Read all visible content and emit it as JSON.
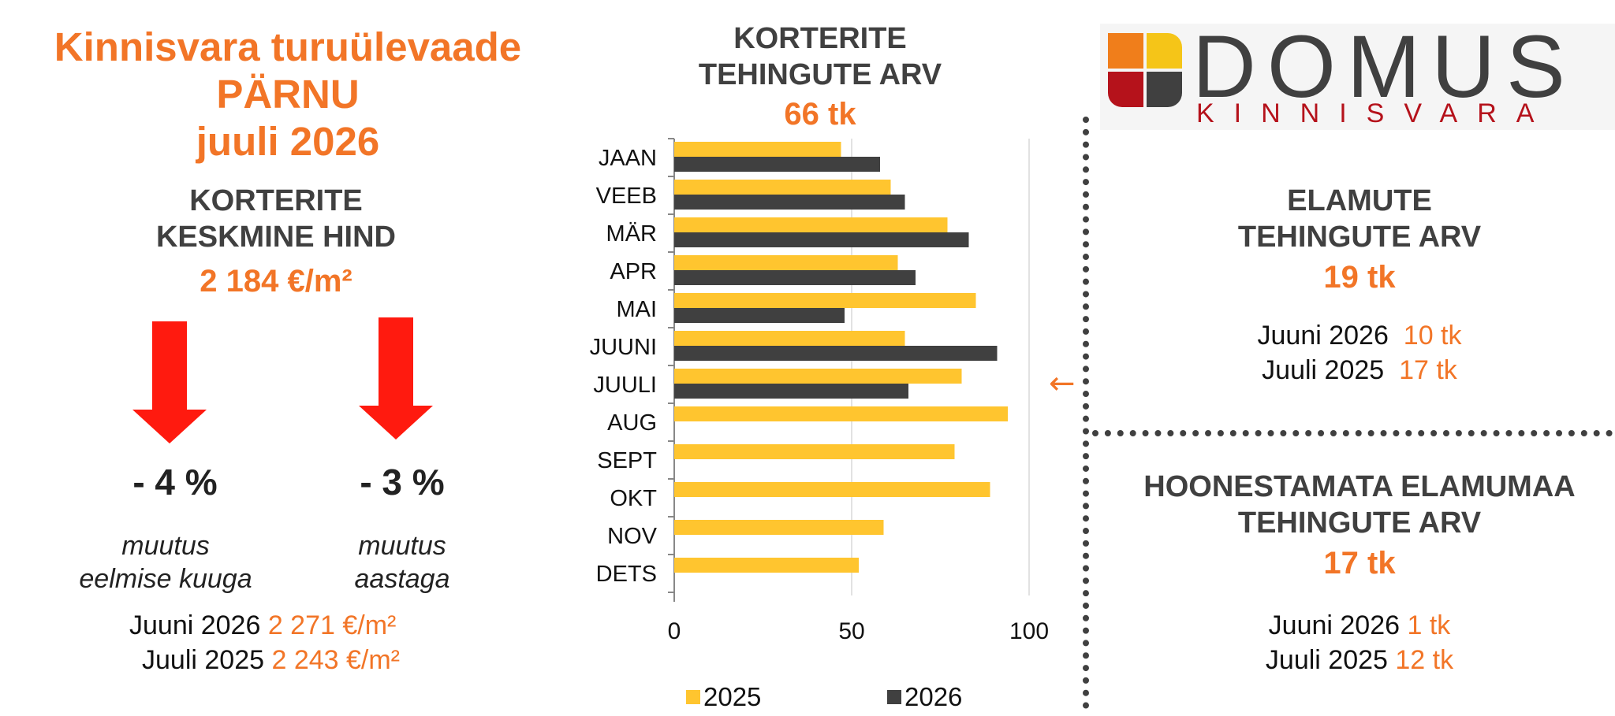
{
  "left": {
    "title_line1": "Kinnisvara turuülevaade",
    "title_line2": "PÄRNU",
    "title_line3": "juuli 2026",
    "price_heading_line1": "KORTERITE",
    "price_heading_line2": "KESKMINE HIND",
    "price_value": "2 184 €/m²",
    "monthly_change": "- 4 %",
    "monthly_label_line1": "muutus",
    "monthly_label_line2": "eelmise kuuga",
    "yearly_change": "- 3 %",
    "yearly_label_line1": "muutus",
    "yearly_label_line2": "aastaga",
    "compare1_label": "Juuni 2026",
    "compare1_value": "2 271 €/m²",
    "compare2_label": "Juuli 2025",
    "compare2_value": "2 243 €/m²"
  },
  "chart_header": {
    "title_line1": "KORTERITE",
    "title_line2": "TEHINGUTE ARV",
    "total": "66 tk"
  },
  "chart_data": {
    "type": "bar",
    "orientation": "horizontal",
    "categories": [
      "JAAN",
      "VEEB",
      "MÄR",
      "APR",
      "MAI",
      "JUUNI",
      "JUULI",
      "AUG",
      "SEPT",
      "OKT",
      "NOV",
      "DETS"
    ],
    "series": [
      {
        "name": "2025",
        "color": "#ffc52f",
        "values": [
          47,
          61,
          77,
          63,
          85,
          65,
          81,
          94,
          79,
          89,
          59,
          52
        ]
      },
      {
        "name": "2026",
        "color": "#404040",
        "values": [
          58,
          65,
          83,
          68,
          48,
          91,
          66,
          null,
          null,
          null,
          null,
          null
        ]
      }
    ],
    "xlim": [
      0,
      100
    ],
    "xticks": [
      0,
      50,
      100
    ],
    "grid": "vertical",
    "legend_position": "bottom",
    "highlight_category": "JUULI",
    "highlight_marker": "←"
  },
  "logo": {
    "word": "DOMUS",
    "sub": "KINNISVARA",
    "colors": [
      "#f07e1b",
      "#f5c518",
      "#b5121b",
      "#404040"
    ]
  },
  "right_top": {
    "heading_line1": "ELAMUTE",
    "heading_line2": "TEHINGUTE ARV",
    "value": "19 tk",
    "compare1_label": "Juuni 2026",
    "compare1_value": "10 tk",
    "compare2_label": "Juuli 2025",
    "compare2_value": "17 tk"
  },
  "right_bottom": {
    "heading_line1": "HOONESTAMATA ELAMUMAA",
    "heading_line2": "TEHINGUTE ARV",
    "value": "17 tk",
    "compare1_label": "Juuni 2026",
    "compare1_value": "1 tk",
    "compare2_label": "Juuli 2025",
    "compare2_value": "12 tk"
  },
  "colors": {
    "accent": "#f27527",
    "down_arrow": "#ff1a0f",
    "dark": "#404040"
  }
}
